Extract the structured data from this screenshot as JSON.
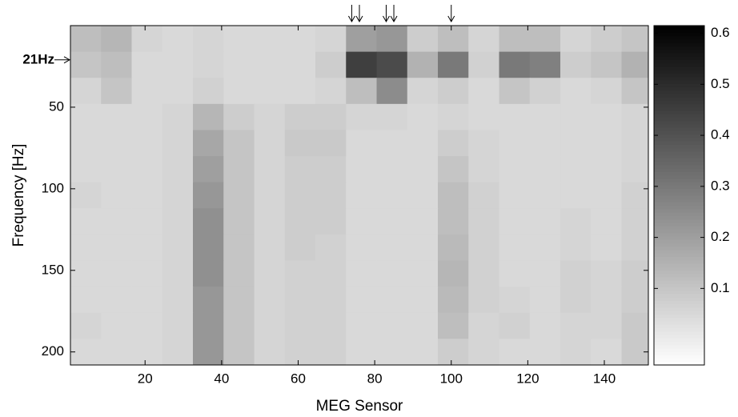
{
  "chart_data": {
    "type": "heatmap",
    "xlabel": "MEG Sensor",
    "ylabel": "Frequency [Hz]",
    "x_bins": [
      0.5,
      8.5,
      16.5,
      24.5,
      32.5,
      40.5,
      48.5,
      56.5,
      64.5,
      72.5,
      80.5,
      88.5,
      96.5,
      104.5,
      112.5,
      120.5,
      128.5,
      136.5,
      144.5,
      151.5
    ],
    "y_bins": [
      0,
      16,
      32,
      48,
      64,
      80,
      96,
      112,
      128,
      144,
      160,
      176,
      192,
      208
    ],
    "z": [
      [
        0.12,
        0.14,
        0.06,
        0.05,
        0.06,
        0.05,
        0.05,
        0.05,
        0.06,
        0.2,
        0.22,
        0.08,
        0.12,
        0.06,
        0.12,
        0.12,
        0.06,
        0.08,
        0.1
      ],
      [
        0.1,
        0.12,
        0.05,
        0.05,
        0.06,
        0.05,
        0.05,
        0.05,
        0.08,
        0.45,
        0.42,
        0.15,
        0.3,
        0.07,
        0.3,
        0.28,
        0.08,
        0.1,
        0.15
      ],
      [
        0.06,
        0.1,
        0.05,
        0.05,
        0.07,
        0.05,
        0.05,
        0.05,
        0.06,
        0.12,
        0.25,
        0.06,
        0.08,
        0.05,
        0.1,
        0.07,
        0.05,
        0.06,
        0.1
      ],
      [
        0.05,
        0.05,
        0.05,
        0.06,
        0.14,
        0.08,
        0.06,
        0.08,
        0.08,
        0.06,
        0.06,
        0.05,
        0.06,
        0.05,
        0.05,
        0.05,
        0.05,
        0.05,
        0.06
      ],
      [
        0.05,
        0.05,
        0.05,
        0.06,
        0.18,
        0.1,
        0.06,
        0.09,
        0.09,
        0.05,
        0.05,
        0.05,
        0.08,
        0.06,
        0.05,
        0.05,
        0.05,
        0.05,
        0.06
      ],
      [
        0.05,
        0.05,
        0.05,
        0.06,
        0.2,
        0.1,
        0.06,
        0.08,
        0.08,
        0.05,
        0.05,
        0.05,
        0.1,
        0.06,
        0.05,
        0.05,
        0.05,
        0.05,
        0.06
      ],
      [
        0.06,
        0.05,
        0.05,
        0.06,
        0.22,
        0.1,
        0.06,
        0.08,
        0.08,
        0.05,
        0.05,
        0.05,
        0.12,
        0.07,
        0.05,
        0.05,
        0.05,
        0.05,
        0.07
      ],
      [
        0.05,
        0.05,
        0.05,
        0.06,
        0.24,
        0.1,
        0.06,
        0.08,
        0.08,
        0.05,
        0.05,
        0.05,
        0.12,
        0.07,
        0.05,
        0.05,
        0.06,
        0.05,
        0.07
      ],
      [
        0.05,
        0.05,
        0.05,
        0.06,
        0.24,
        0.1,
        0.06,
        0.08,
        0.07,
        0.05,
        0.05,
        0.05,
        0.13,
        0.07,
        0.05,
        0.05,
        0.06,
        0.05,
        0.07
      ],
      [
        0.05,
        0.05,
        0.05,
        0.06,
        0.24,
        0.1,
        0.06,
        0.07,
        0.07,
        0.05,
        0.05,
        0.05,
        0.14,
        0.07,
        0.05,
        0.05,
        0.07,
        0.06,
        0.08
      ],
      [
        0.05,
        0.05,
        0.05,
        0.06,
        0.22,
        0.1,
        0.06,
        0.07,
        0.07,
        0.05,
        0.05,
        0.05,
        0.13,
        0.07,
        0.06,
        0.05,
        0.07,
        0.06,
        0.08
      ],
      [
        0.06,
        0.05,
        0.05,
        0.06,
        0.22,
        0.1,
        0.06,
        0.07,
        0.07,
        0.05,
        0.05,
        0.05,
        0.12,
        0.06,
        0.07,
        0.05,
        0.06,
        0.06,
        0.09
      ],
      [
        0.05,
        0.05,
        0.05,
        0.06,
        0.22,
        0.1,
        0.06,
        0.07,
        0.07,
        0.05,
        0.05,
        0.05,
        0.08,
        0.06,
        0.05,
        0.05,
        0.06,
        0.05,
        0.09
      ]
    ],
    "xlim": [
      0.5,
      151.5
    ],
    "xticks": [
      20,
      40,
      60,
      80,
      100,
      120,
      140
    ],
    "ylim": [
      208,
      0
    ],
    "yticks": [
      50,
      100,
      150,
      200
    ],
    "clim": [
      -0.05,
      0.615
    ],
    "cticks": [
      0.1,
      0.2,
      0.3,
      0.4,
      0.5,
      0.6
    ],
    "colormap": "gray-reversed",
    "annotation": {
      "text": "21Hz",
      "y": 21
    },
    "arrow_sensors": [
      74,
      76,
      83,
      85,
      100
    ]
  }
}
